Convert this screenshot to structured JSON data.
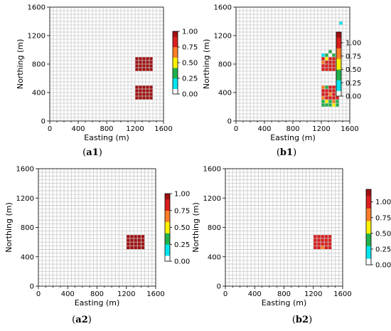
{
  "chart_data": [
    {
      "id": "a1",
      "type": "heatmap",
      "caption_letter": "a",
      "caption_num": "1",
      "xlabel": "Easting (m)",
      "ylabel": "Northing (m)",
      "xlim": [
        0,
        1600
      ],
      "ylim": [
        0,
        1600
      ],
      "xticks": [
        "0",
        "400",
        "800",
        "1200",
        "1600"
      ],
      "yticks": [
        "0",
        "400",
        "800",
        "1200",
        "1600"
      ],
      "grid_cell_size_m": 50,
      "colorbar": {
        "vmin": 0,
        "vmax": 1.0,
        "ticks": [
          "0.00",
          "0.25",
          "0.50",
          "0.75",
          "1.00"
        ]
      },
      "cells": [
        {
          "x0": 1200,
          "x1": 1450,
          "y0": 700,
          "y1": 900,
          "value": 1.0
        },
        {
          "x0": 1200,
          "x1": 1450,
          "y0": 300,
          "y1": 500,
          "value": 1.0
        }
      ]
    },
    {
      "id": "b1",
      "type": "heatmap",
      "caption_letter": "b",
      "caption_num": "1",
      "xlabel": "Easting (m)",
      "ylabel": "Northing (m)",
      "xlim": [
        0,
        1600
      ],
      "ylim": [
        0,
        1600
      ],
      "xticks": [
        "0",
        "400",
        "800",
        "1200",
        "1600"
      ],
      "yticks": [
        "0",
        "400",
        "800",
        "1200",
        "1600"
      ],
      "grid_cell_size_m": 50,
      "colorbar": {
        "vmin": 0,
        "vmax": 1.2,
        "ticks": [
          "0.00",
          "0.25",
          "0.50",
          "0.75",
          "1.00"
        ]
      },
      "cells": [
        {
          "x0": 1200,
          "x1": 1450,
          "y0": 700,
          "y1": 900,
          "value": 1.05
        },
        {
          "x0": 1200,
          "x1": 1450,
          "y0": 300,
          "y1": 500,
          "value": 1.05
        },
        {
          "x0": 1200,
          "x1": 1250,
          "y0": 900,
          "y1": 950,
          "value": 0.2
        },
        {
          "x0": 1250,
          "x1": 1300,
          "y0": 900,
          "y1": 950,
          "value": 0.35
        },
        {
          "x0": 1300,
          "x1": 1350,
          "y0": 950,
          "y1": 1000,
          "value": 0.3
        },
        {
          "x0": 1350,
          "x1": 1400,
          "y0": 900,
          "y1": 950,
          "value": 0.35
        },
        {
          "x0": 1250,
          "x1": 1300,
          "y0": 850,
          "y1": 900,
          "value": 0.65
        },
        {
          "x0": 1300,
          "x1": 1350,
          "y0": 850,
          "y1": 900,
          "value": 0.9
        },
        {
          "x0": 1200,
          "x1": 1250,
          "y0": 800,
          "y1": 850,
          "value": 0.8
        },
        {
          "x0": 1200,
          "x1": 1250,
          "y0": 450,
          "y1": 500,
          "value": 0.75
        },
        {
          "x0": 1250,
          "x1": 1300,
          "y0": 450,
          "y1": 500,
          "value": 0.4
        },
        {
          "x0": 1200,
          "x1": 1250,
          "y0": 300,
          "y1": 350,
          "value": 0.8
        },
        {
          "x0": 1300,
          "x1": 1350,
          "y0": 350,
          "y1": 400,
          "value": 0.85
        },
        {
          "x0": 1200,
          "x1": 1250,
          "y0": 250,
          "y1": 300,
          "value": 0.3
        },
        {
          "x0": 1250,
          "x1": 1300,
          "y0": 250,
          "y1": 300,
          "value": 0.65
        },
        {
          "x0": 1300,
          "x1": 1350,
          "y0": 250,
          "y1": 300,
          "value": 0.3
        },
        {
          "x0": 1350,
          "x1": 1400,
          "y0": 250,
          "y1": 300,
          "value": 0.7
        },
        {
          "x0": 1400,
          "x1": 1450,
          "y0": 250,
          "y1": 300,
          "value": 0.35
        },
        {
          "x0": 1200,
          "x1": 1250,
          "y0": 200,
          "y1": 250,
          "value": 0.3
        },
        {
          "x0": 1250,
          "x1": 1300,
          "y0": 200,
          "y1": 250,
          "value": 0.35
        },
        {
          "x0": 1300,
          "x1": 1350,
          "y0": 200,
          "y1": 250,
          "value": 0.3
        },
        {
          "x0": 1350,
          "x1": 1400,
          "y0": 200,
          "y1": 250,
          "value": 0.6
        },
        {
          "x0": 1400,
          "x1": 1450,
          "y0": 200,
          "y1": 250,
          "value": 0.3
        },
        {
          "x0": 1450,
          "x1": 1500,
          "y0": 1350,
          "y1": 1400,
          "value": 0.15
        }
      ]
    },
    {
      "id": "a2",
      "type": "heatmap",
      "caption_letter": "a",
      "caption_num": "2",
      "xlabel": "Easting (m)",
      "ylabel": "Northing (m)",
      "xlim": [
        0,
        1600
      ],
      "ylim": [
        0,
        1600
      ],
      "xticks": [
        "0",
        "400",
        "800",
        "1200",
        "1600"
      ],
      "yticks": [
        "0",
        "400",
        "800",
        "1200",
        "1600"
      ],
      "grid_cell_size_m": 50,
      "colorbar": {
        "vmin": 0,
        "vmax": 1.0,
        "ticks": [
          "0.00",
          "0.25",
          "0.50",
          "0.75",
          "1.00"
        ]
      },
      "cells": [
        {
          "x0": 1200,
          "x1": 1450,
          "y0": 500,
          "y1": 700,
          "value": 1.0
        }
      ]
    },
    {
      "id": "b2",
      "type": "heatmap",
      "caption_letter": "b",
      "caption_num": "2",
      "xlabel": "Easting (m)",
      "ylabel": "Northing (m)",
      "xlim": [
        0,
        1600
      ],
      "ylim": [
        0,
        1600
      ],
      "xticks": [
        "0",
        "400",
        "800",
        "1200",
        "1600"
      ],
      "yticks": [
        "0",
        "400",
        "800",
        "1200",
        "1600"
      ],
      "grid_cell_size_m": 50,
      "colorbar": {
        "vmin": 0,
        "vmax": 1.2,
        "ticks": [
          "0.00",
          "0.25",
          "0.50",
          "0.75",
          "1.00"
        ]
      },
      "cells": [
        {
          "x0": 1200,
          "x1": 1450,
          "y0": 500,
          "y1": 700,
          "value": 1.05
        },
        {
          "x0": 1300,
          "x1": 1350,
          "y0": 500,
          "y1": 550,
          "value": 0.8
        }
      ]
    }
  ],
  "colors": {
    "grid": "#c8c8c8",
    "colormap": [
      "#ffffff",
      "#00e5ee",
      "#22b14c",
      "#fff200",
      "#ff7f27",
      "#d91e1e",
      "#a01010"
    ]
  }
}
